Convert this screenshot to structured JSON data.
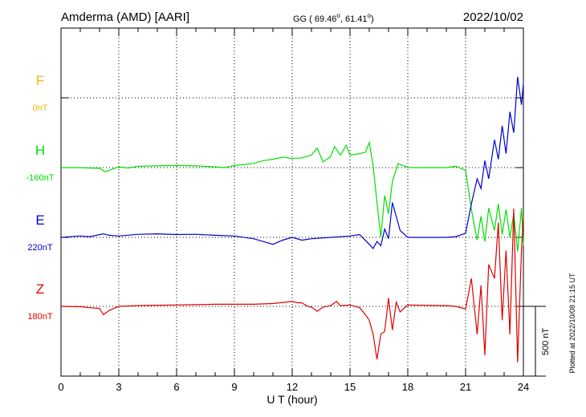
{
  "header": {
    "station": "Amderma (AMD)  [AARI]",
    "coords_prefix": "GG ( 69.46",
    "coords_mid": ",  61.41",
    "coords_suffix": ")",
    "degree_symbol": "o",
    "date": "2022/10/02"
  },
  "footer": {
    "xlabel": "U T (hour)",
    "plotted_at": "Plotted at 2022/10/08 21:15 UT",
    "scale_label": "500 nT"
  },
  "chart_data": {
    "type": "line",
    "title": "Amderma (AMD)  [AARI]",
    "xlabel": "U T (hour)",
    "xlim": [
      0,
      24
    ],
    "xticks": [
      0,
      3,
      6,
      9,
      12,
      15,
      18,
      21,
      24
    ],
    "xtick_labels": [
      "0",
      "3",
      "6",
      "9",
      "12",
      "15",
      "18",
      "21",
      "24"
    ],
    "scale_nT": 500,
    "grid": true,
    "series": [
      {
        "name": "F",
        "baseline_label": "0nT",
        "color": "#f5b800",
        "points": []
      },
      {
        "name": "H",
        "baseline_label": "-160nT",
        "color": "#00e000",
        "points": [
          [
            0,
            0
          ],
          [
            1,
            0
          ],
          [
            1.5,
            -3
          ],
          [
            2,
            -5
          ],
          [
            2.3,
            -30
          ],
          [
            2.6,
            -15
          ],
          [
            3,
            5
          ],
          [
            3.5,
            -3
          ],
          [
            4,
            10
          ],
          [
            5,
            12
          ],
          [
            6,
            15
          ],
          [
            7,
            12
          ],
          [
            8,
            5
          ],
          [
            8.5,
            0
          ],
          [
            9,
            15
          ],
          [
            10,
            30
          ],
          [
            10.5,
            50
          ],
          [
            11,
            60
          ],
          [
            11.5,
            75
          ],
          [
            12,
            65
          ],
          [
            12.5,
            70
          ],
          [
            13,
            90
          ],
          [
            13.3,
            140
          ],
          [
            13.6,
            40
          ],
          [
            14,
            80
          ],
          [
            14.2,
            150
          ],
          [
            14.5,
            90
          ],
          [
            14.8,
            160
          ],
          [
            15,
            90
          ],
          [
            15.5,
            100
          ],
          [
            15.8,
            110
          ],
          [
            16,
            180
          ],
          [
            16.2,
            15
          ],
          [
            16.4,
            -250
          ],
          [
            16.6,
            -500
          ],
          [
            16.8,
            -200
          ],
          [
            17,
            -330
          ],
          [
            17.2,
            -100
          ],
          [
            17.5,
            30
          ],
          [
            18,
            0
          ],
          [
            20,
            0
          ],
          [
            20.5,
            10
          ],
          [
            21,
            -20
          ],
          [
            21.3,
            -300
          ],
          [
            21.6,
            -520
          ],
          [
            21.8,
            -350
          ],
          [
            22,
            -530
          ],
          [
            22.2,
            -290
          ],
          [
            22.5,
            -450
          ],
          [
            22.7,
            -260
          ],
          [
            22.9,
            -480
          ],
          [
            23.1,
            -300
          ],
          [
            23.3,
            -500
          ],
          [
            23.5,
            -330
          ],
          [
            23.7,
            -600
          ],
          [
            23.9,
            -290
          ],
          [
            24,
            -560
          ]
        ]
      },
      {
        "name": "E",
        "baseline_label": "220nT",
        "color": "#0000d0",
        "points": [
          [
            0,
            0
          ],
          [
            1,
            10
          ],
          [
            1.5,
            5
          ],
          [
            2.2,
            25
          ],
          [
            2.5,
            15
          ],
          [
            3,
            10
          ],
          [
            4,
            22
          ],
          [
            5,
            25
          ],
          [
            6,
            20
          ],
          [
            7,
            22
          ],
          [
            8,
            15
          ],
          [
            9,
            10
          ],
          [
            10,
            -10
          ],
          [
            10.5,
            -30
          ],
          [
            11,
            -50
          ],
          [
            11.5,
            -20
          ],
          [
            12,
            0
          ],
          [
            12.5,
            -20
          ],
          [
            13,
            -10
          ],
          [
            14,
            0
          ],
          [
            15,
            10
          ],
          [
            15.5,
            20
          ],
          [
            16,
            -50
          ],
          [
            16.2,
            -80
          ],
          [
            16.4,
            -30
          ],
          [
            16.6,
            -60
          ],
          [
            16.8,
            60
          ],
          [
            17,
            -10
          ],
          [
            17.2,
            250
          ],
          [
            17.4,
            150
          ],
          [
            17.6,
            50
          ],
          [
            18,
            0
          ],
          [
            20,
            0
          ],
          [
            20.5,
            5
          ],
          [
            21,
            30
          ],
          [
            21.3,
            240
          ],
          [
            21.6,
            420
          ],
          [
            21.8,
            350
          ],
          [
            22,
            550
          ],
          [
            22.2,
            420
          ],
          [
            22.5,
            700
          ],
          [
            22.7,
            560
          ],
          [
            22.9,
            800
          ],
          [
            23.1,
            600
          ],
          [
            23.3,
            900
          ],
          [
            23.5,
            750
          ],
          [
            23.7,
            1150
          ],
          [
            23.9,
            950
          ],
          [
            24,
            1100
          ]
        ]
      },
      {
        "name": "Z",
        "baseline_label": "180nT",
        "color": "#e00000",
        "points": [
          [
            0,
            0
          ],
          [
            1,
            -3
          ],
          [
            1.5,
            -10
          ],
          [
            2,
            -15
          ],
          [
            2.2,
            -60
          ],
          [
            2.5,
            -30
          ],
          [
            3,
            0
          ],
          [
            4,
            5
          ],
          [
            5,
            8
          ],
          [
            6,
            10
          ],
          [
            7,
            12
          ],
          [
            8,
            15
          ],
          [
            9,
            15
          ],
          [
            10,
            15
          ],
          [
            11,
            20
          ],
          [
            12,
            35
          ],
          [
            12.3,
            25
          ],
          [
            12.5,
            25
          ],
          [
            12.8,
            0
          ],
          [
            13,
            -5
          ],
          [
            13.3,
            -35
          ],
          [
            13.6,
            -5
          ],
          [
            14,
            5
          ],
          [
            14.3,
            35
          ],
          [
            14.5,
            5
          ],
          [
            15,
            10
          ],
          [
            15.5,
            -10
          ],
          [
            15.8,
            -60
          ],
          [
            16,
            -100
          ],
          [
            16.2,
            -200
          ],
          [
            16.4,
            -380
          ],
          [
            16.6,
            -200
          ],
          [
            16.8,
            -180
          ],
          [
            17,
            60
          ],
          [
            17.2,
            -170
          ],
          [
            17.4,
            30
          ],
          [
            17.6,
            -40
          ],
          [
            18,
            10
          ],
          [
            20,
            5
          ],
          [
            20.5,
            0
          ],
          [
            21,
            -20
          ],
          [
            21.3,
            200
          ],
          [
            21.6,
            -200
          ],
          [
            21.8,
            150
          ],
          [
            22,
            -350
          ],
          [
            22.2,
            300
          ],
          [
            22.5,
            200
          ],
          [
            22.7,
            600
          ],
          [
            22.9,
            -100
          ],
          [
            23.1,
            400
          ],
          [
            23.3,
            -200
          ],
          [
            23.5,
            700
          ],
          [
            23.7,
            -400
          ],
          [
            23.9,
            400
          ],
          [
            24,
            650
          ]
        ]
      }
    ]
  }
}
